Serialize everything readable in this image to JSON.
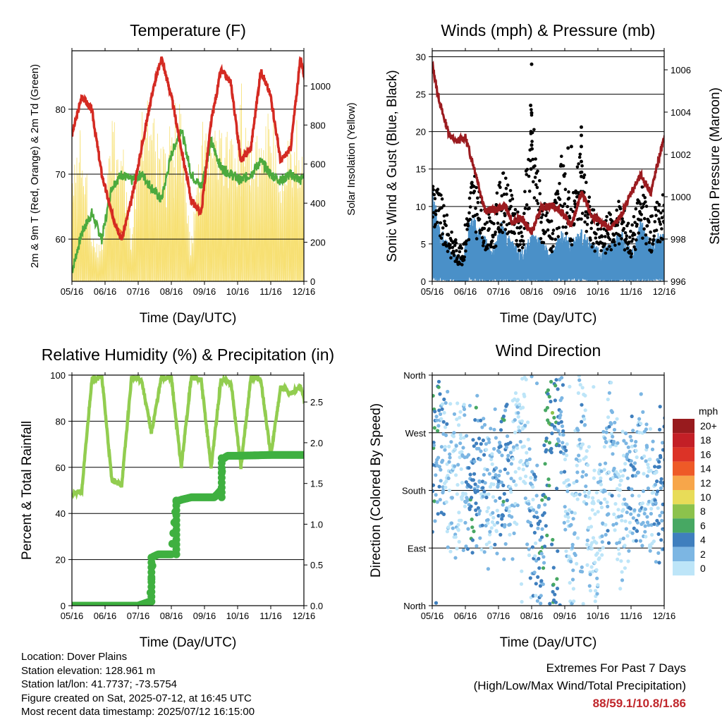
{
  "colors": {
    "temp_red": "#d42a22",
    "temp_orange": "#f0742a",
    "dewpoint_green": "#4caa3e",
    "solar_yellow": "#f7de6b",
    "wind_blue": "#4a90c8",
    "gust_black": "#000000",
    "pressure_maroon": "#9b1b1f",
    "rh_lightgreen": "#92cd50",
    "precip_green": "#3fb040",
    "extremes_red": "#c0262b"
  },
  "chart_data": [
    {
      "id": "temperature",
      "type": "line",
      "title": "Temperature (F)",
      "xlabel": "Time (Day/UTC)",
      "ylabel": "2m & 9m T (Red, Orange) & 2m Td (Green)",
      "y2label": "Solar Insolation (Yellow)",
      "x_ticks": [
        "05/16",
        "06/16",
        "07/16",
        "08/16",
        "09/16",
        "10/16",
        "11/16",
        "12/16"
      ],
      "ylim": [
        53.5,
        89
      ],
      "y_ticks": [
        60,
        70,
        80
      ],
      "y2lim": [
        0,
        1180
      ],
      "y2_ticks": [
        0,
        200,
        400,
        600,
        800,
        1000
      ],
      "grid": "horizontal",
      "series": [
        {
          "name": "2m T",
          "axis": "left",
          "color": "#d42a22",
          "x": [
            5.0,
            5.3,
            5.6,
            5.9,
            6.2,
            6.5,
            6.8,
            7.1,
            7.4,
            7.7,
            8.0,
            8.3,
            8.6,
            8.9,
            9.2,
            9.5,
            9.8,
            10.1,
            10.4,
            10.7,
            11.0,
            11.3,
            11.6,
            11.9,
            12.2
          ],
          "y": [
            76,
            82,
            80,
            70,
            64,
            60,
            66,
            74,
            82,
            88,
            82,
            74,
            66,
            64,
            78,
            86,
            84,
            72,
            74,
            86,
            82,
            72,
            74,
            88,
            80
          ],
          "note": "10-minute series, ~1100 samples; key extrema shown"
        },
        {
          "name": "9m T",
          "axis": "left",
          "color": "#f0742a",
          "x": [
            6.1,
            6.3,
            6.5
          ],
          "y": [
            66,
            62,
            61
          ]
        },
        {
          "name": "2m Td",
          "axis": "left",
          "color": "#4caa3e",
          "x": [
            5.0,
            5.3,
            5.6,
            5.9,
            6.2,
            6.5,
            6.8,
            7.1,
            7.4,
            7.7,
            8.0,
            8.3,
            8.6,
            8.9,
            9.2,
            9.5,
            9.8,
            10.1,
            10.4,
            10.7,
            11.0,
            11.3,
            11.6,
            11.9,
            12.2
          ],
          "y": [
            55,
            61,
            64,
            60,
            68,
            70,
            69,
            70,
            68,
            66,
            73,
            77,
            70,
            68,
            75,
            71,
            70,
            69,
            70,
            72,
            70,
            69,
            70,
            69,
            72
          ]
        },
        {
          "name": "Solar Insolation",
          "axis": "right",
          "color": "#f7de6b",
          "x": [
            5.0,
            5.3,
            5.6,
            5.9,
            6.2,
            6.5,
            6.8,
            7.1,
            7.4,
            7.7,
            8.0,
            8.3,
            8.6,
            8.9,
            9.2,
            9.5,
            9.8,
            10.1,
            10.4,
            10.7,
            11.0,
            11.3,
            11.6,
            11.9,
            12.2
          ],
          "y": [
            800,
            900,
            300,
            200,
            1000,
            900,
            300,
            1150,
            1050,
            800,
            1130,
            1000,
            200,
            1100,
            1030,
            950,
            900,
            1050,
            900,
            820,
            1050,
            700,
            950,
            900,
            600
          ]
        }
      ]
    },
    {
      "id": "winds",
      "type": "scatter",
      "title": "Winds (mph) & Pressure (mb)",
      "xlabel": "Time (Day/UTC)",
      "ylabel": "Sonic Wind & Gust (Blue, Black)",
      "y2label": "Station Pressure (Maroon)",
      "x_ticks": [
        "05/16",
        "06/16",
        "07/16",
        "08/16",
        "09/16",
        "10/16",
        "11/16",
        "12/16"
      ],
      "ylim": [
        0,
        30.8
      ],
      "y_ticks": [
        0,
        5,
        10,
        15,
        20,
        25,
        30
      ],
      "y2lim": [
        996,
        1006.9
      ],
      "y2_ticks": [
        996,
        998,
        1000,
        1002,
        1004,
        1006
      ],
      "grid": "horizontal",
      "series": [
        {
          "name": "Station Pressure",
          "axis": "right",
          "color": "#9b1b1f",
          "x": [
            5.0,
            5.15,
            5.3,
            5.5,
            5.7,
            6.0,
            6.3,
            6.6,
            6.8,
            7.0,
            7.2,
            7.4,
            7.7,
            8.0,
            8.3,
            8.6,
            8.9,
            9.2,
            9.5,
            9.8,
            10.1,
            10.4,
            10.7,
            11.0,
            11.3,
            11.6,
            11.9,
            12.2
          ],
          "y": [
            1006.3,
            1005.0,
            1004.0,
            1003.0,
            1002.6,
            1002.8,
            1001.2,
            999.3,
            999.4,
            999.4,
            999.6,
            998.8,
            999.0,
            998.3,
            999.5,
            999.6,
            999.3,
            998.6,
            1000.2,
            999.1,
            998.8,
            998.5,
            999.1,
            1000.2,
            1001.0,
            1000.2,
            1002.2,
            1003.8
          ]
        },
        {
          "name": "Gust",
          "axis": "left",
          "color": "#000000",
          "x": [
            5.0,
            5.3,
            5.6,
            5.9,
            6.2,
            6.5,
            6.8,
            7.1,
            7.4,
            7.7,
            8.0,
            8.3,
            8.6,
            8.9,
            9.2,
            9.5,
            9.8,
            10.1,
            10.4,
            10.7,
            11.0,
            11.3,
            11.6,
            11.9,
            12.2
          ],
          "y": [
            12,
            10,
            6,
            4,
            14,
            10,
            8,
            15,
            12,
            8,
            29,
            12,
            8,
            18,
            11,
            20,
            10,
            8,
            9,
            10,
            7,
            12,
            8,
            12,
            10
          ]
        },
        {
          "name": "Sonic Wind",
          "axis": "left",
          "color": "#4a90c8",
          "x": [
            5.0,
            5.3,
            5.6,
            5.9,
            6.2,
            6.5,
            6.8,
            7.1,
            7.4,
            7.7,
            8.0,
            8.3,
            8.6,
            8.9,
            9.2,
            9.5,
            9.8,
            10.1,
            10.4,
            10.7,
            11.0,
            11.3,
            11.6,
            11.9,
            12.2
          ],
          "y": [
            9,
            5,
            3,
            2,
            7,
            5,
            3,
            6,
            4,
            3,
            5,
            4,
            3,
            5,
            4,
            5,
            4,
            3,
            4,
            5,
            3,
            6,
            4,
            5,
            5
          ]
        }
      ]
    },
    {
      "id": "humidity",
      "type": "line",
      "title": "Relative Humidity (%) & Precipitation (in)",
      "xlabel": "Time (Day/UTC)",
      "ylabel": "Percent & Total Rainfall",
      "x_ticks": [
        "05/16",
        "06/16",
        "07/16",
        "08/16",
        "09/16",
        "10/16",
        "11/16",
        "12/16"
      ],
      "ylim": [
        0,
        100
      ],
      "y_ticks": [
        0,
        20,
        40,
        60,
        80,
        100
      ],
      "y2lim": [
        0,
        2.83
      ],
      "y2_ticks": [
        "0.0",
        "0.5",
        "1.0",
        "1.5",
        "2.0",
        "2.5"
      ],
      "grid": "horizontal",
      "series": [
        {
          "name": "Relative Humidity",
          "axis": "left",
          "color": "#92cd50",
          "x": [
            5.0,
            5.3,
            5.6,
            5.9,
            6.2,
            6.5,
            6.8,
            7.1,
            7.4,
            7.7,
            8.0,
            8.3,
            8.6,
            8.9,
            9.2,
            9.5,
            9.8,
            10.1,
            10.4,
            10.7,
            11.0,
            11.3,
            11.6,
            11.9,
            12.2
          ],
          "y": [
            48,
            50,
            98,
            100,
            55,
            52,
            99,
            98,
            75,
            99,
            99,
            60,
            99,
            98,
            60,
            98,
            97,
            60,
            99,
            98,
            65,
            95,
            92,
            95,
            80
          ]
        },
        {
          "name": "Total Precipitation",
          "axis": "right",
          "color": "#3fb040",
          "x": [
            5.0,
            6.0,
            7.0,
            7.35,
            7.45,
            7.6,
            8.0,
            8.15,
            8.3,
            8.6,
            9.0,
            9.3,
            9.5,
            9.55,
            9.7,
            10.0,
            11.0,
            12.2
          ],
          "y": [
            0,
            0,
            0,
            0.05,
            0.6,
            0.63,
            0.63,
            1.28,
            1.3,
            1.33,
            1.33,
            1.33,
            1.42,
            1.8,
            1.84,
            1.84,
            1.85,
            1.85
          ]
        }
      ]
    },
    {
      "id": "wind_direction",
      "type": "scatter",
      "title": "Wind Direction",
      "xlabel": "Time (Day/UTC)",
      "ylabel": "Direction (Colored By Speed)",
      "x_ticks": [
        "05/16",
        "06/16",
        "07/16",
        "08/16",
        "09/16",
        "10/16",
        "11/16",
        "12/16"
      ],
      "y_ticks": [
        "North",
        "East",
        "South",
        "West",
        "North"
      ],
      "ylim": [
        0,
        360
      ],
      "grid": "horizontal",
      "colorbar": {
        "title": "mph",
        "labels": [
          "20+",
          "18",
          "16",
          "14",
          "12",
          "10",
          "8",
          "6",
          "4",
          "2",
          "0"
        ],
        "colors": [
          "#981b1e",
          "#c31f26",
          "#dc3327",
          "#ee5a27",
          "#f7a64a",
          "#e8dc58",
          "#8cc24c",
          "#47a863",
          "#3f7fbe",
          "#7cb6e3",
          "#bde5f8"
        ]
      },
      "series": [
        {
          "name": "Direction",
          "note": "points colored by wind speed",
          "x": [
            5.0,
            5.3,
            5.6,
            5.9,
            6.2,
            6.5,
            6.8,
            7.1,
            7.4,
            7.7,
            8.0,
            8.3,
            8.6,
            8.9,
            9.2,
            9.5,
            9.8,
            10.1,
            10.4,
            10.7,
            11.0,
            11.3,
            11.6,
            11.9,
            12.2
          ],
          "y": [
            230,
            250,
            180,
            210,
            190,
            200,
            170,
            220,
            180,
            300,
            120,
            80,
            340,
            300,
            60,
            320,
            90,
            150,
            250,
            140,
            200,
            210,
            170,
            190,
            180
          ],
          "speed": [
            6,
            4,
            2,
            1,
            6,
            4,
            2,
            5,
            3,
            1,
            3,
            5,
            7,
            4,
            2,
            3,
            1,
            2,
            3,
            1,
            4,
            3,
            2,
            5,
            3
          ]
        }
      ]
    }
  ],
  "footer": {
    "location": "Location: Dover Plains",
    "elevation": "Station elevation: 128.961 m",
    "latlon": "Station lat/lon: 41.7737; -73.5754",
    "created": "Figure created on Sat, 2025-07-12, at 16:45 UTC",
    "recent": "Most recent data timestamp: 2025/07/12 16:15:00",
    "extremes_title": "Extremes For Past 7 Days",
    "extremes_subtitle": "(High/Low/Max Wind/Total Precipitation)",
    "extremes_values": "88/59.1/10.8/1.86"
  }
}
